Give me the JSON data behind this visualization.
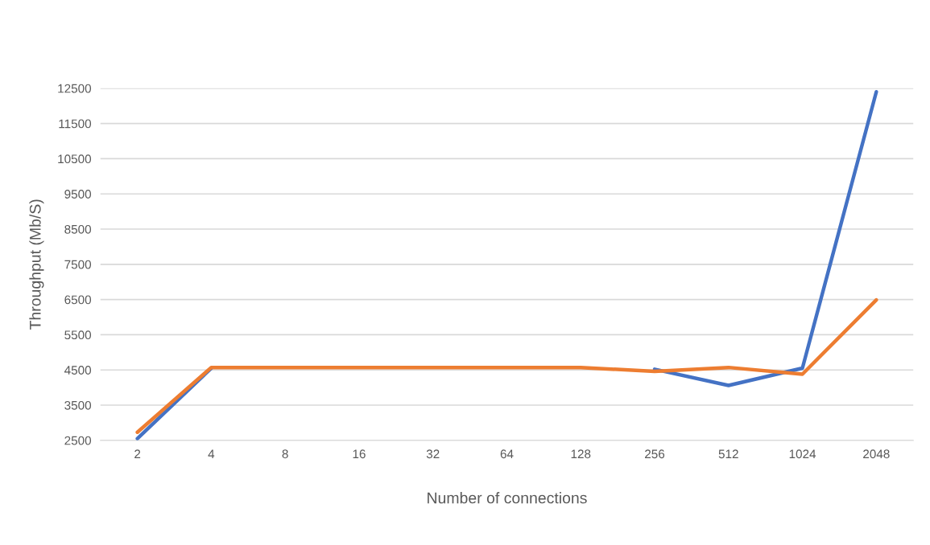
{
  "chart_data": {
    "type": "line",
    "xlabel": "Number of connections",
    "ylabel": "Throughput (Mb/S)",
    "categories": [
      "2",
      "4",
      "8",
      "16",
      "32",
      "64",
      "128",
      "256",
      "512",
      "1024",
      "2048"
    ],
    "series": [
      {
        "color": "#4472c4",
        "values": [
          2550,
          4550,
          null,
          null,
          null,
          null,
          null,
          4520,
          4060,
          4550,
          12400
        ]
      },
      {
        "color": "#ed7d31",
        "values": [
          2730,
          4570,
          4570,
          4570,
          4570,
          4570,
          4570,
          4460,
          4570,
          4380,
          6490
        ]
      }
    ],
    "ylim": [
      2500,
      12500
    ],
    "yticks": [
      2500,
      3500,
      4500,
      5500,
      6500,
      7500,
      8500,
      9500,
      10500,
      11500,
      12500
    ],
    "grid": "y",
    "legend": false,
    "marker": "none",
    "line_style": "solid"
  }
}
